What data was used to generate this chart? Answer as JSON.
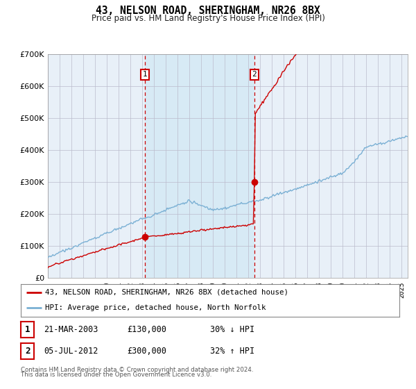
{
  "title": "43, NELSON ROAD, SHERINGHAM, NR26 8BX",
  "subtitle": "Price paid vs. HM Land Registry's House Price Index (HPI)",
  "sale1_year": 2003.22,
  "sale1_price": 130000,
  "sale2_year": 2012.51,
  "sale2_price": 300000,
  "legend_line1": "43, NELSON ROAD, SHERINGHAM, NR26 8BX (detached house)",
  "legend_line2": "HPI: Average price, detached house, North Norfolk",
  "footer1": "Contains HM Land Registry data © Crown copyright and database right 2024.",
  "footer2": "This data is licensed under the Open Government Licence v3.0.",
  "hpi_color": "#7ab0d4",
  "price_color": "#cc0000",
  "vline_color": "#cc0000",
  "fill_color": "#ddeeff",
  "bg_color": "#e8f0f8",
  "ylim_max": 700000,
  "xmin": 1995,
  "xmax": 2025.5
}
